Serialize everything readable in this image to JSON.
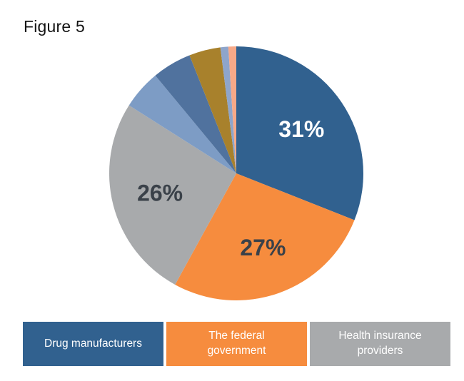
{
  "figure": {
    "title": "Figure 5"
  },
  "chart_data": {
    "type": "pie",
    "title": "Figure 5",
    "start_angle_deg": 0,
    "direction": "clockwise",
    "grid": false,
    "legend_position": "bottom",
    "slices": [
      {
        "name": "Drug manufacturers",
        "value": 31,
        "color": "#31618f",
        "label": "31%",
        "label_color": "#ffffff"
      },
      {
        "name": "The federal government",
        "value": 27,
        "color": "#f68c3e",
        "label": "27%",
        "label_color": "#3a4149"
      },
      {
        "name": "Health insurance providers",
        "value": 26,
        "color": "#a8aaac",
        "label": "26%",
        "label_color": "#3a4149"
      },
      {
        "name": "",
        "value": 5,
        "color": "#7d9cc5",
        "label": "",
        "label_color": ""
      },
      {
        "name": "",
        "value": 5,
        "color": "#50729e",
        "label": "",
        "label_color": ""
      },
      {
        "name": "",
        "value": 4,
        "color": "#a8812c",
        "label": "",
        "label_color": ""
      },
      {
        "name": "",
        "value": 1,
        "color": "#8ea5cb",
        "label": "",
        "label_color": ""
      },
      {
        "name": "",
        "value": 1,
        "color": "#f7a988",
        "label": "",
        "label_color": ""
      }
    ],
    "legend": [
      {
        "label": "Drug manufacturers",
        "color": "#31618f"
      },
      {
        "label": "The federal\ngovernment",
        "color": "#f68c3e"
      },
      {
        "label": "Health insurance\nproviders",
        "color": "#a8aaac"
      }
    ]
  }
}
